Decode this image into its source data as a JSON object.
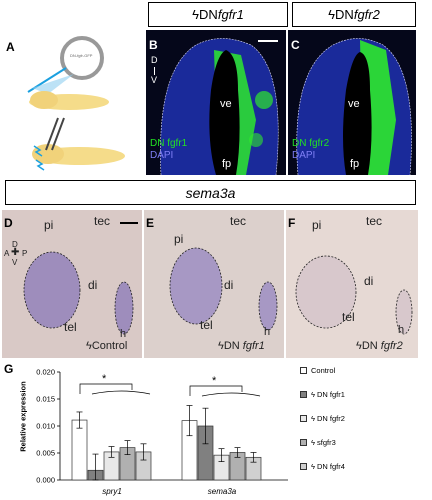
{
  "headers": {
    "fgfr1": {
      "prefix": "DN ",
      "gene": "fgfr1"
    },
    "fgfr2": {
      "prefix": "DN ",
      "gene": "fgfr2"
    },
    "sema3a": "sema3a"
  },
  "panel_letters": [
    "A",
    "B",
    "C",
    "D",
    "E",
    "F",
    "G"
  ],
  "panelA": {
    "plasmid": "DN-fgfr-GFP"
  },
  "panelB": {
    "axis_d": "D",
    "axis_v": "V",
    "ve": "ve",
    "fp": "fp",
    "stain1": "DN fgfr1",
    "stain2": "DAPI"
  },
  "panelC": {
    "ve": "ve",
    "fp": "fp",
    "stain1": "DN fgfr2",
    "stain2": "DAPI"
  },
  "panelD": {
    "pi": "pi",
    "tec": "tec",
    "di": "di",
    "tel": "tel",
    "h": "h",
    "cond": "Control",
    "axis_d": "D",
    "axis_a": "A",
    "axis_p": "P",
    "axis_v": "V"
  },
  "panelE": {
    "pi": "pi",
    "tec": "tec",
    "di": "di",
    "tel": "tel",
    "h": "h",
    "cond_prefix": "DN ",
    "cond_gene": "fgfr1"
  },
  "panelF": {
    "pi": "pi",
    "tec": "tec",
    "di": "di",
    "tel": "tel",
    "h": "h",
    "cond_prefix": "DN ",
    "cond_gene": "fgfr2"
  },
  "colors": {
    "gfp": "#2ee82e",
    "dapi": "#1a2a9a",
    "ish_bg": "#d8c8c4",
    "ish_stain": "#8a78b8"
  },
  "chart_data": {
    "type": "bar",
    "title": "",
    "xlabel": "",
    "ylabel": "Relative expression",
    "ylim": [
      0.0,
      0.02
    ],
    "yticks": [
      "0.000",
      "0.005",
      "0.010",
      "0.015",
      "0.020"
    ],
    "categories": [
      "spry1",
      "sema3a"
    ],
    "series": [
      {
        "name": "Control",
        "values": [
          0.0111,
          0.011
        ],
        "errors": [
          0.0015,
          0.0028
        ],
        "fill": "#ffffff"
      },
      {
        "name": "DN fgfr1",
        "values": [
          0.0018,
          0.01
        ],
        "errors": [
          0.003,
          0.0033
        ],
        "fill": "#808080"
      },
      {
        "name": "DN fgfr2",
        "values": [
          0.0052,
          0.0046
        ],
        "errors": [
          0.001,
          0.0012
        ],
        "fill": "#e8e8e8"
      },
      {
        "name": "sfgfr3",
        "values": [
          0.006,
          0.0051
        ],
        "errors": [
          0.0013,
          0.0009
        ],
        "fill": "#b0b0b0"
      },
      {
        "name": "DN fgfr4",
        "values": [
          0.0052,
          0.0042
        ],
        "errors": [
          0.0015,
          0.0009
        ],
        "fill": "#d0d0d0"
      }
    ],
    "significance": "*",
    "legend_position": "right"
  }
}
